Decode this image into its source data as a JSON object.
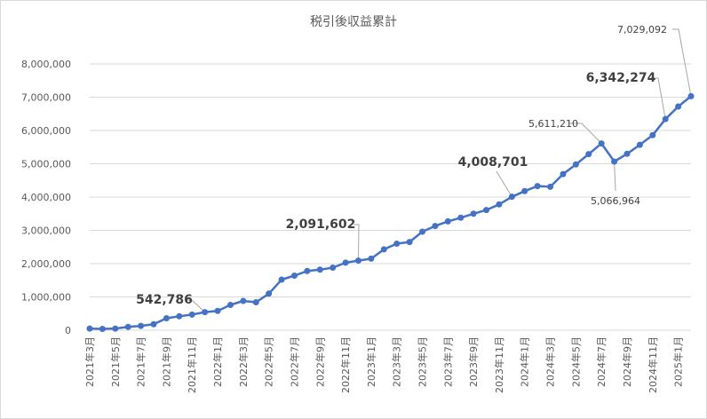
{
  "chart_data": {
    "type": "line",
    "title": "税引後収益累計",
    "xlabel": "",
    "ylabel": "",
    "ylim": [
      0,
      8000000
    ],
    "yticks": [
      "0",
      "1,000,000",
      "2,000,000",
      "3,000,000",
      "4,000,000",
      "5,000,000",
      "6,000,000",
      "7,000,000",
      "8,000,000"
    ],
    "grid": "horizontal",
    "legend": "none",
    "color": "#4472c4",
    "x_labels": [
      "2021年3月",
      "2021年5月",
      "2021年7月",
      "2021年9月",
      "2021年11月",
      "2022年1月",
      "2022年3月",
      "2022年5月",
      "2022年7月",
      "2022年9月",
      "2022年11月",
      "2023年1月",
      "2023年3月",
      "2023年5月",
      "2023年7月",
      "2023年9月",
      "2023年11月",
      "2024年1月",
      "2024年3月",
      "2024年5月",
      "2024年7月",
      "2024年9月",
      "2024年11月",
      "2025年1月"
    ],
    "series": [
      {
        "values": [
          50000,
          40000,
          50000,
          100000,
          130000,
          180000,
          360000,
          420000,
          470000,
          542786,
          580000,
          760000,
          880000,
          840000,
          1100000,
          1520000,
          1640000,
          1780000,
          1820000,
          1880000,
          2030000,
          2091602,
          2150000,
          2430000,
          2600000,
          2650000,
          2960000,
          3130000,
          3270000,
          3380000,
          3500000,
          3610000,
          3780000,
          4008701,
          4180000,
          4330000,
          4310000,
          4690000,
          4980000,
          5290000,
          5611210,
          5066964,
          5300000,
          5570000,
          5860000,
          6342274,
          6720000,
          7029092
        ]
      }
    ],
    "annotations": [
      {
        "index": 9,
        "label": "542,786",
        "style": "big"
      },
      {
        "index": 21,
        "label": "2,091,602",
        "style": "big"
      },
      {
        "index": 33,
        "label": "4,008,701",
        "style": "big"
      },
      {
        "index": 40,
        "label": "5,611,210",
        "style": "small"
      },
      {
        "index": 41,
        "label": "5,066,964",
        "style": "small"
      },
      {
        "index": 45,
        "label": "6,342,274",
        "style": "big"
      },
      {
        "index": 47,
        "label": "7,029,092",
        "style": "small"
      }
    ]
  }
}
